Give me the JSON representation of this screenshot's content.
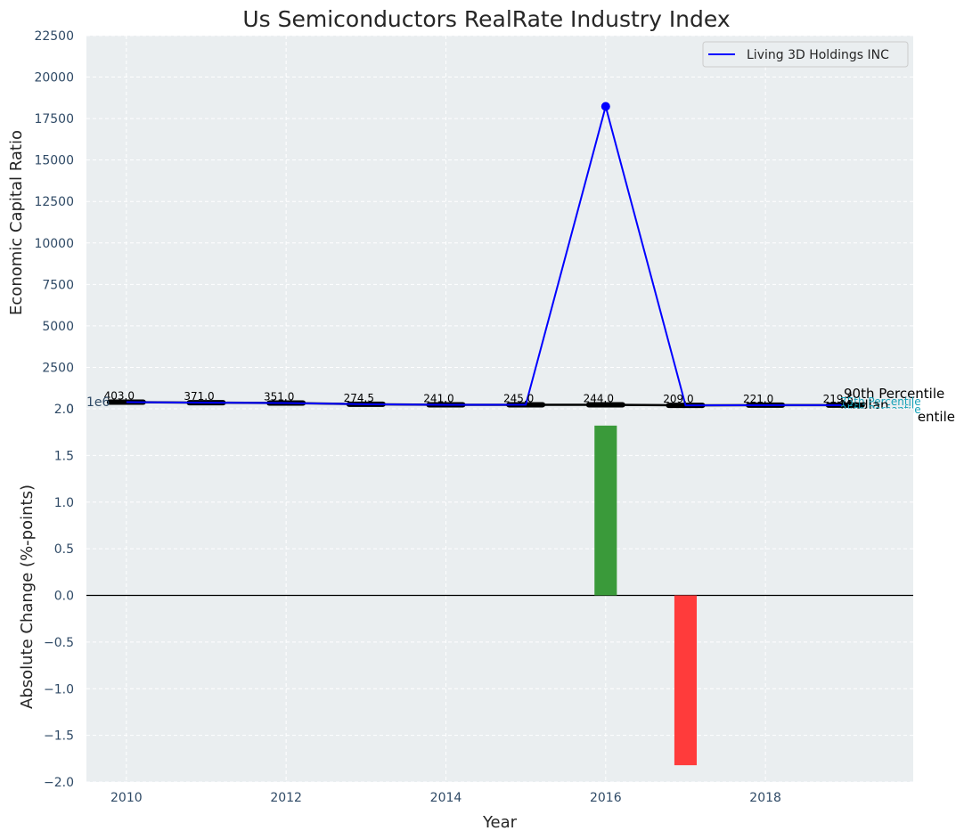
{
  "chart_data": [
    {
      "type": "line",
      "title": "Us Semiconductors RealRate Industry Index",
      "xlabel": "",
      "ylabel": "Economic Capital Ratio",
      "xlim": [
        2009.5,
        2019.85
      ],
      "ylim": [
        0,
        22500
      ],
      "yticks": [
        0,
        2500,
        5000,
        7500,
        10000,
        12500,
        15000,
        17500,
        20000,
        22500
      ],
      "offset_text": "1e6",
      "grid": true,
      "legend_position": "top-right",
      "series": [
        {
          "name": "Living 3D Holdings INC",
          "color": "#0000ff",
          "x": [
            2010,
            2011,
            2012,
            2013,
            2014,
            2015,
            2016,
            2017,
            2018,
            2019
          ],
          "y": [
            403,
            371,
            351,
            274.5,
            241,
            245,
            18230,
            209,
            221,
            219.5
          ]
        },
        {
          "name": "Median",
          "color": "#000000",
          "x": [
            2010,
            2011,
            2012,
            2013,
            2014,
            2015,
            2016,
            2017,
            2018,
            2019
          ],
          "y": [
            403,
            371,
            351,
            274.5,
            241,
            245,
            244,
            209,
            221,
            219.5
          ]
        }
      ],
      "data_labels": [
        "403.0",
        "371.0",
        "351.0",
        "274.5",
        "241.0",
        "245.0",
        "244.0",
        "209.0",
        "221.0",
        "219.5"
      ],
      "annotations": [
        "90th Percentile",
        "75th Percentile",
        "Median",
        "25th Percentile",
        "entile"
      ]
    },
    {
      "type": "bar",
      "xlabel": "Year",
      "ylabel": "Absolute Change (%-points)",
      "xlim": [
        2009.5,
        2019.85
      ],
      "ylim": [
        -2.0,
        2.0
      ],
      "xticks": [
        2010,
        2012,
        2014,
        2016,
        2018
      ],
      "yticks": [
        -2.0,
        -1.5,
        -1.0,
        -0.5,
        0.0,
        0.5,
        1.0,
        1.5,
        2.0
      ],
      "grid": true,
      "categories": [
        2016,
        2017
      ],
      "values": [
        1.82,
        -1.82
      ],
      "colors": [
        "#3a9a3a",
        "#ff3b3b"
      ]
    }
  ]
}
